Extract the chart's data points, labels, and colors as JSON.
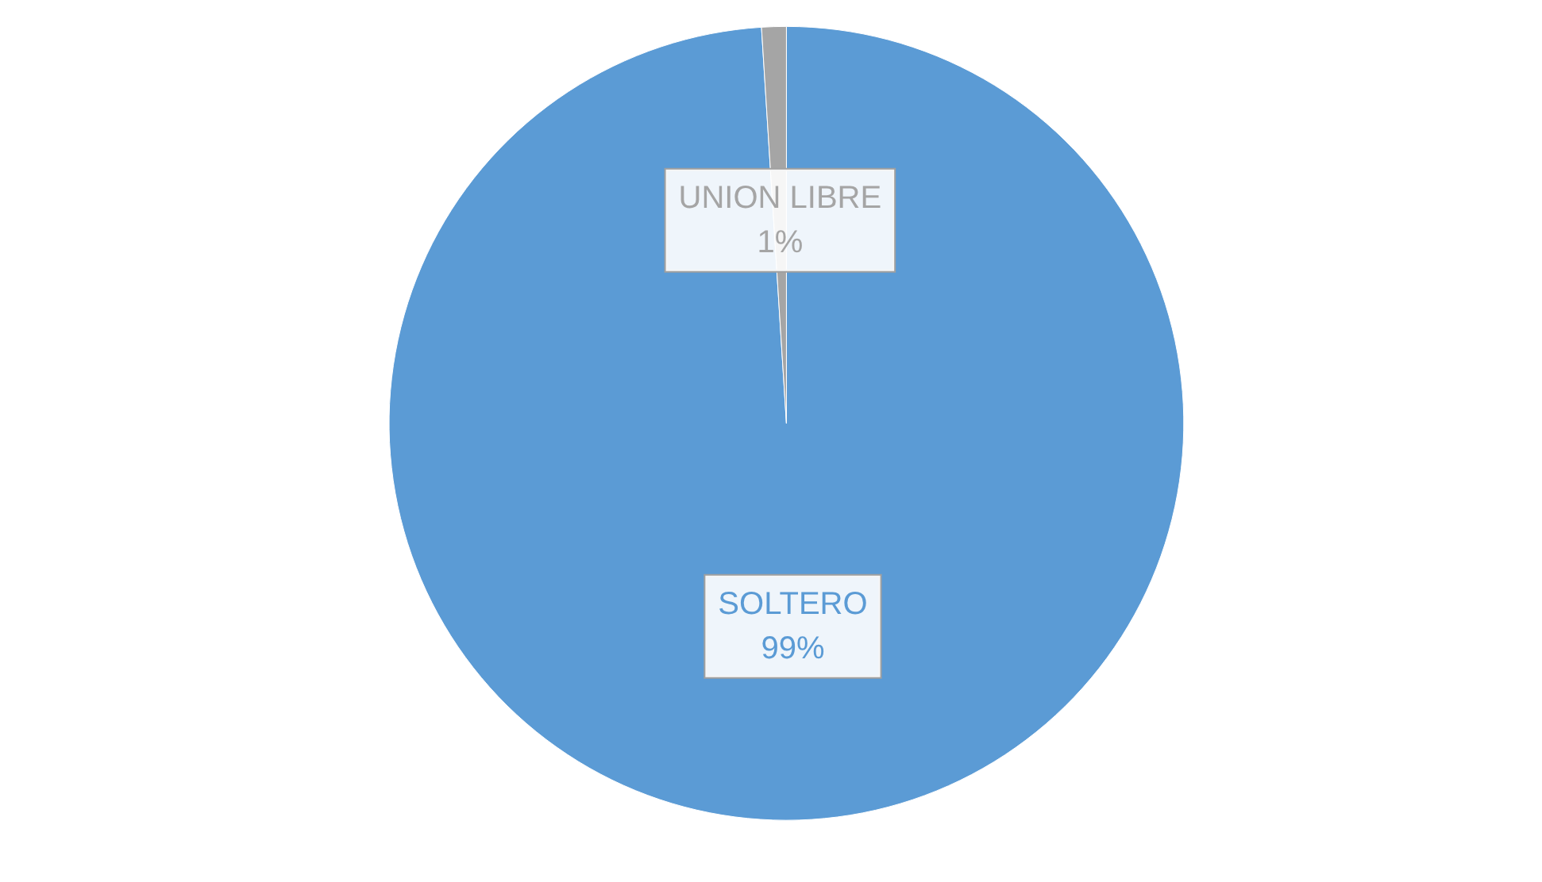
{
  "chart_data": {
    "type": "pie",
    "categories": [
      "SOLTERO",
      "UNION LIBRE"
    ],
    "values": [
      99,
      1
    ],
    "colors": [
      "#5b9bd5",
      "#a5a5a5"
    ],
    "value_labels": [
      "99%",
      "1%"
    ],
    "legend": false
  }
}
